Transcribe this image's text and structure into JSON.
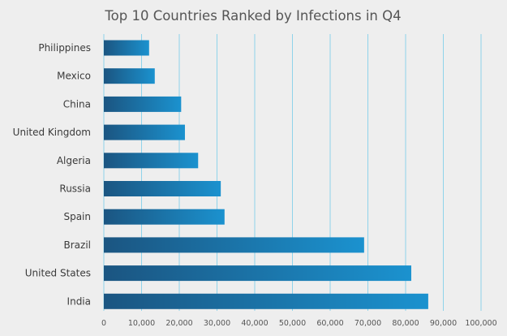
{
  "chart_data": {
    "type": "bar",
    "orientation": "horizontal",
    "title": "Top 10 Countries Ranked by Infections in Q4",
    "xlabel": "",
    "ylabel": "",
    "xlim": [
      0,
      100000
    ],
    "grid": true,
    "categories": [
      "Philippines",
      "Mexico",
      "China",
      "United Kingdom",
      "Algeria",
      "Russia",
      "Spain",
      "Brazil",
      "United States",
      "India"
    ],
    "values": [
      12000,
      13500,
      20500,
      21500,
      25000,
      31000,
      32000,
      69000,
      81500,
      86000
    ],
    "ticks": [
      "0",
      "10,000",
      "20,000",
      "30,000",
      "40,000",
      "50,000",
      "60,000",
      "70,000",
      "80,000",
      "90,000",
      "100,000"
    ],
    "colors": {
      "bar_start": "#1b5581",
      "bar_end": "#1b92cf",
      "grid": "#8fd3ea",
      "background": "#eeeeee"
    }
  }
}
